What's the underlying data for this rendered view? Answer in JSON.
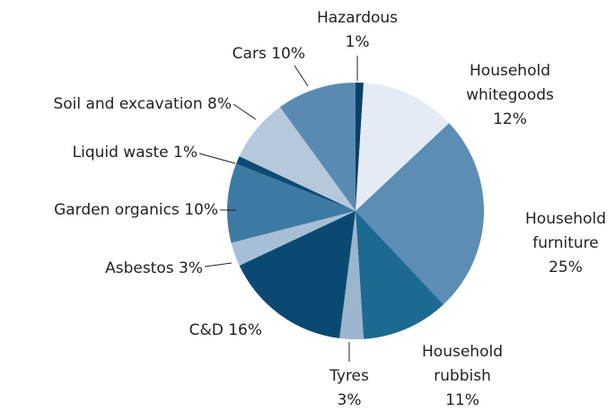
{
  "chart_data": {
    "type": "pie",
    "categories": [
      "Hazardous",
      "Household whitegoods",
      "Household furniture",
      "Household rubbish",
      "Tyres",
      "C&D",
      "Asbestos",
      "Garden organics",
      "Liquid waste",
      "Soil and excavation",
      "Cars"
    ],
    "values": [
      1,
      12,
      25,
      11,
      3,
      16,
      3,
      10,
      1,
      8,
      10
    ],
    "value_labels": [
      "1%",
      "12%",
      "25%",
      "11%",
      "3%",
      "16%",
      "3%",
      "10%",
      "1%",
      "8%",
      "10%"
    ],
    "colors": [
      "#0b3f6b",
      "#e4ebf4",
      "#5b8db5",
      "#1c6a92",
      "#9bb5cc",
      "#0a4a72",
      "#a7bfd6",
      "#3c7aa3",
      "#0d4a75",
      "#b5c8dc",
      "#5a8ab2"
    ]
  }
}
